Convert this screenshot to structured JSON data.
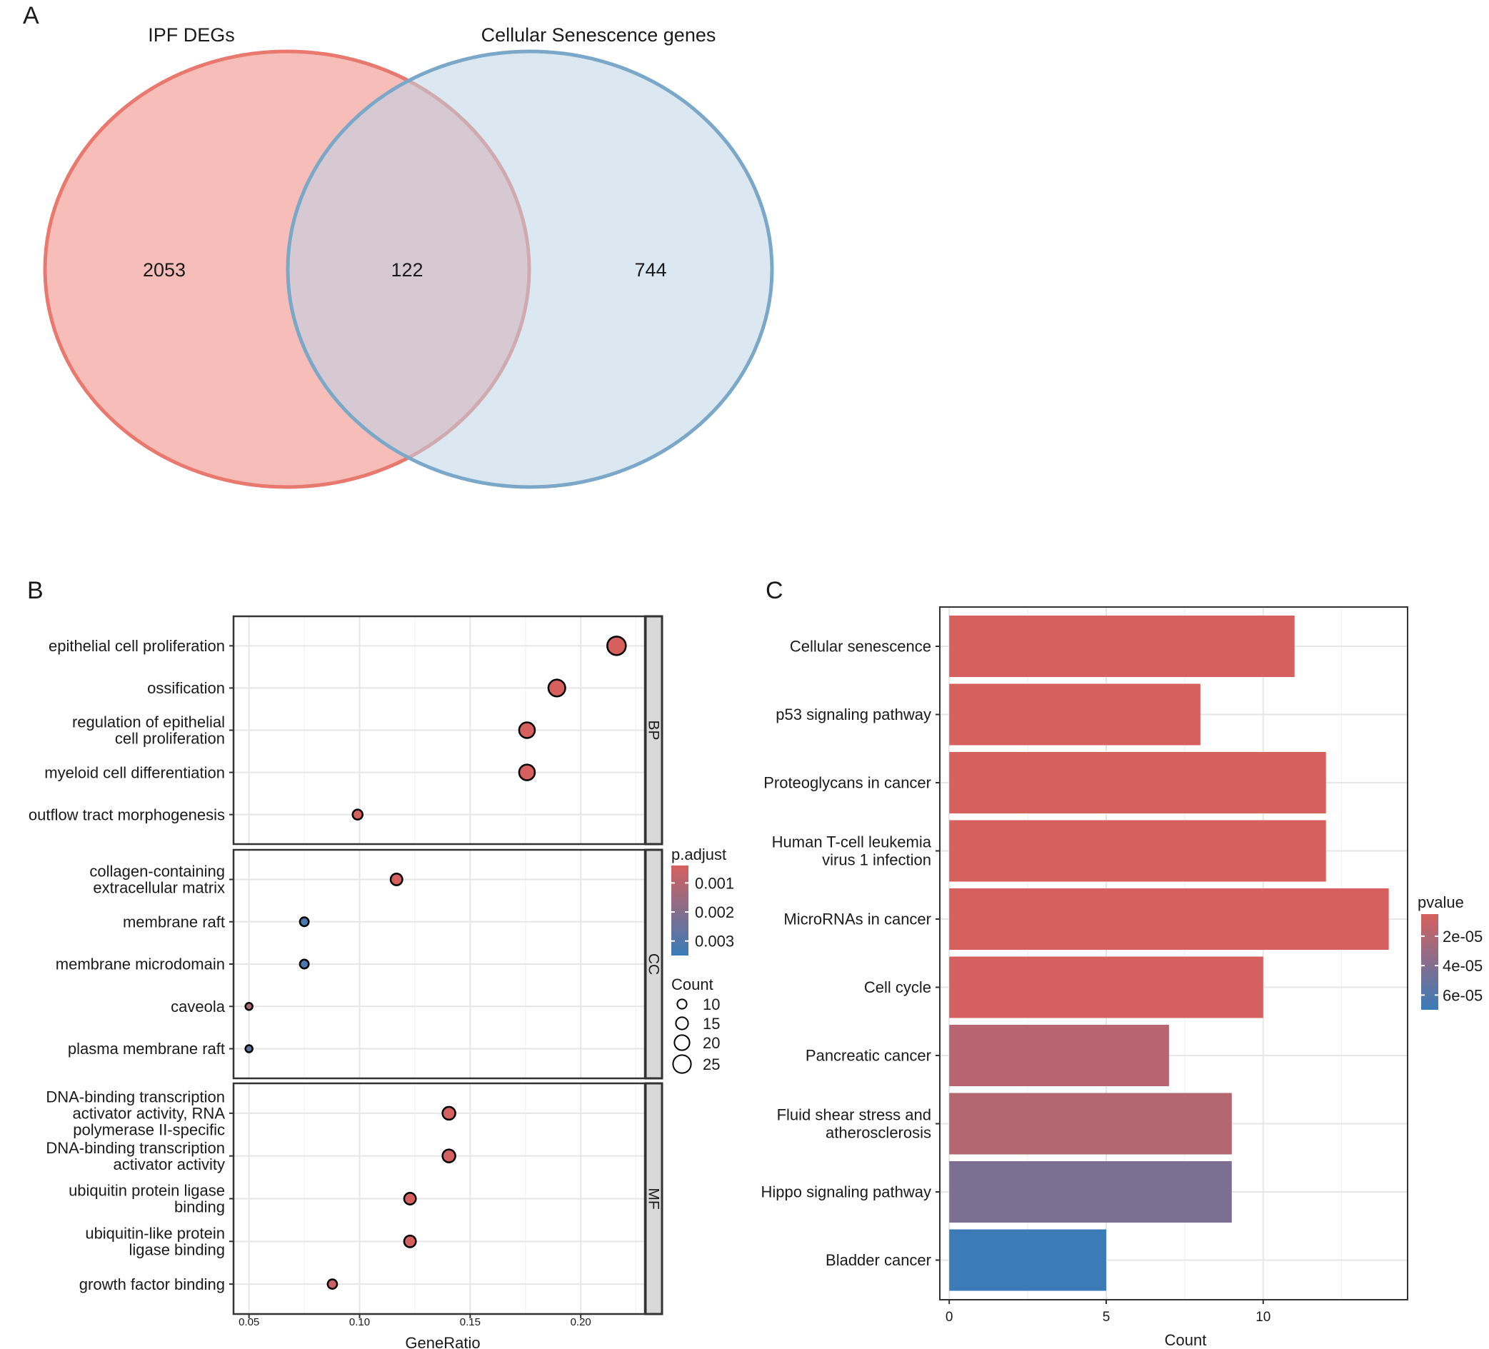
{
  "panel_labels": {
    "a": "A",
    "b": "B",
    "c": "C"
  },
  "chart_data": [
    {
      "type": "venn",
      "panel": "A",
      "sets": [
        {
          "name": "IPF DEGs",
          "only": 2053,
          "color": "#e9786f",
          "fill": "#f7bdb8"
        },
        {
          "name": "Cellular Senescence genes",
          "only": 744,
          "color": "#7ba8c9",
          "fill": "#bed4e6"
        }
      ],
      "intersection": 122,
      "intersection_fill": "#c4bac4"
    },
    {
      "type": "scatter",
      "panel": "B",
      "xlabel": "GeneRatio",
      "xlim": [
        0.043,
        0.229
      ],
      "xticks": [
        "0.05",
        "0.10",
        "0.15",
        "0.20"
      ],
      "xtick_values": [
        0.05,
        0.1,
        0.15,
        0.2
      ],
      "facets": [
        {
          "name": "BP",
          "terms": [
            {
              "label": [
                "epithelial cell proliferation"
              ],
              "x": 0.2162,
              "count": 26,
              "padj": 0.0004
            },
            {
              "label": [
                "ossification"
              ],
              "x": 0.1892,
              "count": 23,
              "padj": 0.0004
            },
            {
              "label": [
                "regulation of epithelial",
                "cell proliferation"
              ],
              "x": 0.1757,
              "count": 21,
              "padj": 0.0004
            },
            {
              "label": [
                "myeloid cell differentiation"
              ],
              "x": 0.1757,
              "count": 21,
              "padj": 0.0004
            },
            {
              "label": [
                "outflow tract morphogenesis"
              ],
              "x": 0.0991,
              "count": 11,
              "padj": 0.0004
            }
          ]
        },
        {
          "name": "CC",
          "terms": [
            {
              "label": [
                "collagen-containing",
                "extracellular matrix"
              ],
              "x": 0.1167,
              "count": 14,
              "padj": 0.0004
            },
            {
              "label": [
                "membrane raft"
              ],
              "x": 0.075,
              "count": 9,
              "padj": 0.0032
            },
            {
              "label": [
                "membrane microdomain"
              ],
              "x": 0.075,
              "count": 9,
              "padj": 0.0032
            },
            {
              "label": [
                "caveola"
              ],
              "x": 0.05,
              "count": 6,
              "padj": 0.0012
            },
            {
              "label": [
                "plasma membrane raft"
              ],
              "x": 0.05,
              "count": 6,
              "padj": 0.0028
            }
          ]
        },
        {
          "name": "MF",
          "terms": [
            {
              "label": [
                "DNA-binding transcription",
                "activator activity, RNA",
                "polymerase II-specific"
              ],
              "x": 0.1404,
              "count": 16,
              "padj": 0.0004
            },
            {
              "label": [
                "DNA-binding transcription",
                "activator activity"
              ],
              "x": 0.1404,
              "count": 16,
              "padj": 0.0004
            },
            {
              "label": [
                "ubiquitin protein ligase",
                "binding"
              ],
              "x": 0.1228,
              "count": 14,
              "padj": 0.0004
            },
            {
              "label": [
                "ubiquitin-like protein",
                "ligase binding"
              ],
              "x": 0.1228,
              "count": 14,
              "padj": 0.0004
            },
            {
              "label": [
                "growth factor binding"
              ],
              "x": 0.0877,
              "count": 10,
              "padj": 0.0006
            }
          ]
        }
      ],
      "legend_color": {
        "title": "p.adjust",
        "ticks": [
          "0.001",
          "0.002",
          "0.003"
        ],
        "tick_values": [
          0.001,
          0.002,
          0.003
        ],
        "range": [
          0.0004,
          0.0035
        ],
        "low_color": "#d6605e",
        "high_color": "#3a7bb8"
      },
      "legend_size": {
        "title": "Count",
        "values": [
          10,
          15,
          20,
          25
        ],
        "labels": [
          "10",
          "15",
          "20",
          "25"
        ]
      }
    },
    {
      "type": "bar",
      "panel": "C",
      "orientation": "horizontal",
      "xlabel": "Count",
      "xlim": [
        -0.3,
        14.6
      ],
      "xticks": [
        "0",
        "5",
        "10"
      ],
      "xtick_values": [
        0,
        5,
        10
      ],
      "categories": [
        [
          "Cellular senescence"
        ],
        [
          "p53 signaling pathway"
        ],
        [
          "Proteoglycans in cancer"
        ],
        [
          "Human T-cell leukemia",
          "virus 1 infection"
        ],
        [
          "MicroRNAs in cancer"
        ],
        [
          "Cell cycle"
        ],
        [
          "Pancreatic cancer"
        ],
        [
          "Fluid shear stress and",
          "atherosclerosis"
        ],
        [
          "Hippo signaling pathway"
        ],
        [
          "Bladder cancer"
        ]
      ],
      "values": [
        11,
        8,
        12,
        12,
        14,
        10,
        7,
        9,
        9,
        5
      ],
      "pvalues": [
        5e-06,
        5e-06,
        5e-06,
        5e-06,
        5e-06,
        6e-06,
        1.8e-05,
        1.9e-05,
        4.2e-05,
        7e-05
      ],
      "legend_color": {
        "title": "pvalue",
        "ticks": [
          "2e-05",
          "4e-05",
          "6e-05"
        ],
        "tick_values": [
          2e-05,
          4e-05,
          6e-05
        ],
        "range": [
          5e-06,
          7e-05
        ],
        "low_color": "#d6605e",
        "high_color": "#3a7bb8"
      }
    }
  ]
}
